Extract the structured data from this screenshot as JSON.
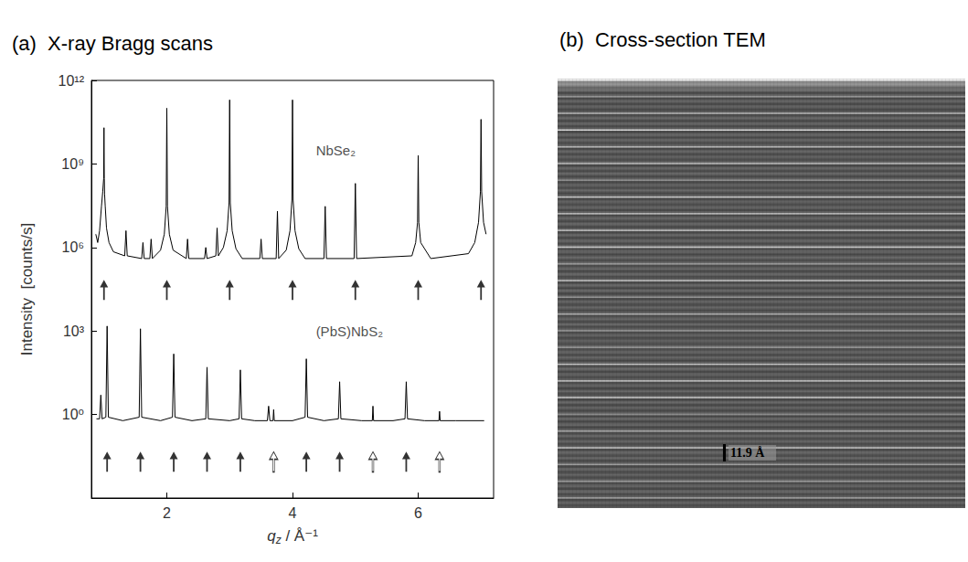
{
  "chart_data": {
    "type": "line",
    "title": "(a)  X-ray Bragg scans",
    "xlabel": "qz / Å⁻¹",
    "ylabel": "Intensity  [counts/s]",
    "log": "y",
    "grid": false,
    "xlim": [
      0.8,
      7.2
    ],
    "xticks": [
      2,
      4,
      6
    ],
    "ylim": [
      0.001,
      1000000000000.0
    ],
    "yticks": [
      {
        "value": 1,
        "label": "10⁰"
      },
      {
        "value": 1000,
        "label": "10³"
      },
      {
        "value": 1000000,
        "label": "10⁶"
      },
      {
        "value": 1000000000,
        "label": "10⁹"
      },
      {
        "value": 1000000000000,
        "label": "10¹²"
      }
    ],
    "series": [
      {
        "color": "#000000",
        "x": [
          0.87,
          0.9,
          0.93,
          0.96,
          0.98,
          0.995,
          1.0,
          1.005,
          1.01,
          1.02,
          1.04,
          1.08,
          1.15,
          1.33,
          1.35,
          1.37,
          1.6,
          1.62,
          1.64,
          1.73,
          1.75,
          1.77,
          1.9,
          1.96,
          1.99,
          2.0,
          2.01,
          2.04,
          2.1,
          2.31,
          2.33,
          2.35,
          2.6,
          2.62,
          2.64,
          2.78,
          2.8,
          2.82,
          2.9,
          2.96,
          2.99,
          3.0,
          3.01,
          3.04,
          3.1,
          3.2,
          3.48,
          3.5,
          3.52,
          3.74,
          3.76,
          3.78,
          3.9,
          3.96,
          3.99,
          4.0,
          4.01,
          4.04,
          4.1,
          4.2,
          4.5,
          4.52,
          4.54,
          4.98,
          5.0,
          5.02,
          5.9,
          5.96,
          5.99,
          6.0,
          6.01,
          6.04,
          6.2,
          6.8,
          6.9,
          6.96,
          6.99,
          7.0,
          7.01,
          7.04,
          7.08
        ],
        "values": [
          3000000.0,
          1500000.0,
          4000000.0,
          30000000.0,
          100000000.0,
          300000000.0,
          20000000000.0,
          300000000.0,
          80000000.0,
          30000000.0,
          5000000.0,
          1500000.0,
          700000.0,
          500000.0,
          4000000.0,
          500000.0,
          400000.0,
          1500000.0,
          400000.0,
          400000.0,
          2000000.0,
          400000.0,
          800000.0,
          3000000.0,
          30000000.0,
          100000000000.0,
          30000000.0,
          3000000.0,
          800000.0,
          400000.0,
          2000000.0,
          400000.0,
          400000.0,
          1000000.0,
          400000.0,
          500000.0,
          5000000.0,
          500000.0,
          1000000.0,
          4000000.0,
          40000000.0,
          200000000000.0,
          40000000.0,
          4000000.0,
          900000.0,
          400000.0,
          400000.0,
          2000000.0,
          400000.0,
          400000.0,
          20000000.0,
          400000.0,
          800000.0,
          4000000.0,
          50000000.0,
          200000000000.0,
          50000000.0,
          4000000.0,
          900000.0,
          400000.0,
          400000.0,
          30000000.0,
          400000.0,
          400000.0,
          200000000.0,
          400000.0,
          500000.0,
          1500000.0,
          8000000.0,
          2000000000.0,
          8000000.0,
          1500000.0,
          400000.0,
          600000.0,
          1500000.0,
          8000000.0,
          100000000.0,
          40000000000.0,
          100000000.0,
          8000000.0,
          3000000.0
        ],
        "arrows": [
          {
            "marker": "filled",
            "y": 30000,
            "x": [
              1,
              2,
              3,
              4,
              5,
              6,
              7
            ]
          }
        ]
      },
      {
        "color": "#000000",
        "x": [
          0.88,
          0.93,
          0.95,
          0.97,
          1.03,
          1.05,
          1.07,
          1.3,
          1.56,
          1.58,
          1.6,
          1.9,
          2.09,
          2.11,
          2.13,
          2.4,
          2.62,
          2.64,
          2.66,
          3.0,
          3.15,
          3.17,
          3.19,
          3.4,
          3.6,
          3.62,
          3.64,
          3.69,
          3.7,
          3.71,
          4.0,
          4.2,
          4.22,
          4.24,
          4.5,
          4.73,
          4.75,
          4.77,
          5.1,
          5.27,
          5.28,
          5.29,
          5.6,
          5.79,
          5.81,
          5.83,
          6.1,
          6.33,
          6.34,
          6.35,
          6.6,
          7.05
        ],
        "values": [
          0.7,
          0.7,
          5,
          0.7,
          0.8,
          1500,
          0.8,
          0.6,
          0.8,
          1200,
          0.8,
          0.6,
          0.8,
          150,
          0.8,
          0.6,
          0.7,
          50,
          0.7,
          0.6,
          0.7,
          40,
          0.7,
          0.6,
          0.6,
          2,
          0.6,
          0.6,
          1.5,
          0.6,
          0.6,
          0.8,
          100,
          0.8,
          0.6,
          0.7,
          15,
          0.7,
          0.6,
          0.6,
          2,
          0.6,
          0.6,
          0.7,
          15,
          0.7,
          0.6,
          0.6,
          1.3,
          0.6,
          0.6,
          0.6
        ],
        "arrows": [
          {
            "marker": "filled",
            "y": 0.02,
            "x": [
              1.05,
              1.58,
              2.11,
              2.64,
              3.17,
              4.22,
              4.75,
              5.81
            ]
          },
          {
            "marker": "open",
            "y": 0.02,
            "x": [
              3.7,
              5.28,
              6.34
            ]
          }
        ]
      }
    ],
    "annotations": [
      {
        "text": "NbSe₂",
        "x": 4.3,
        "y": 3000000000.0
      },
      {
        "text": "(PbS)NbS₂",
        "x": 4.3,
        "y": 1000
      }
    ]
  },
  "image_panel": {
    "title": "(b)  Cross-section TEM",
    "scale_bar_label": "11.9 Å"
  }
}
